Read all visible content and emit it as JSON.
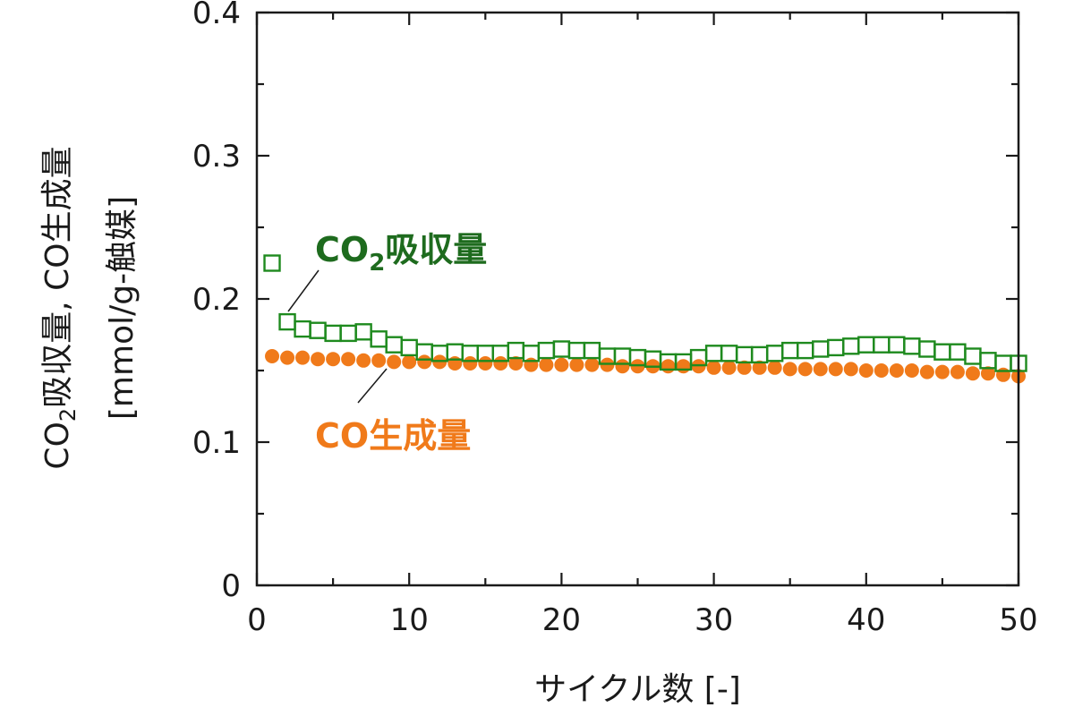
{
  "chart_data": {
    "type": "scatter",
    "title": "",
    "xlabel": "サイクル数 [-]",
    "ylabel": {
      "line1_prefix": "CO",
      "line1_sub": "2",
      "line1_suffix": "吸収量, CO生成量",
      "line2": "[mmol/g-触媒]"
    },
    "xlim": [
      0,
      50
    ],
    "ylim": [
      0,
      0.4
    ],
    "xticks": [
      0,
      10,
      20,
      30,
      40,
      50
    ],
    "xtick_labels": [
      "0",
      "10",
      "20",
      "30",
      "40",
      "50"
    ],
    "yticks": [
      0,
      0.1,
      0.2,
      0.3,
      0.4
    ],
    "ytick_labels": [
      "0",
      "0.1",
      "0.2",
      "0.3",
      "0.4"
    ],
    "x_minor_step": 5,
    "y_minor_step": 0.05,
    "grid": false,
    "legend": "none",
    "series": [
      {
        "key": "co2",
        "marker": "open-square",
        "color": "#1e8a1e",
        "x": [
          1,
          2,
          3,
          4,
          5,
          6,
          7,
          8,
          9,
          10,
          11,
          12,
          13,
          14,
          15,
          16,
          17,
          18,
          19,
          20,
          21,
          22,
          23,
          24,
          25,
          26,
          27,
          28,
          29,
          30,
          31,
          32,
          33,
          34,
          35,
          36,
          37,
          38,
          39,
          40,
          41,
          42,
          43,
          44,
          45,
          46,
          47,
          48,
          49,
          50
        ],
        "y": [
          0.225,
          0.184,
          0.179,
          0.178,
          0.176,
          0.176,
          0.177,
          0.172,
          0.168,
          0.166,
          0.163,
          0.162,
          0.163,
          0.162,
          0.162,
          0.162,
          0.164,
          0.162,
          0.164,
          0.165,
          0.164,
          0.164,
          0.16,
          0.16,
          0.159,
          0.158,
          0.156,
          0.156,
          0.159,
          0.162,
          0.162,
          0.161,
          0.161,
          0.162,
          0.164,
          0.164,
          0.165,
          0.166,
          0.167,
          0.168,
          0.168,
          0.168,
          0.167,
          0.165,
          0.163,
          0.163,
          0.16,
          0.157,
          0.155,
          0.155
        ]
      },
      {
        "key": "co",
        "marker": "filled-circle",
        "color": "#f07a1a",
        "x": [
          1,
          2,
          3,
          4,
          5,
          6,
          7,
          8,
          9,
          10,
          11,
          12,
          13,
          14,
          15,
          16,
          17,
          18,
          19,
          20,
          21,
          22,
          23,
          24,
          25,
          26,
          27,
          28,
          29,
          30,
          31,
          32,
          33,
          34,
          35,
          36,
          37,
          38,
          39,
          40,
          41,
          42,
          43,
          44,
          45,
          46,
          47,
          48,
          49,
          50
        ],
        "y": [
          0.16,
          0.159,
          0.159,
          0.158,
          0.158,
          0.158,
          0.157,
          0.157,
          0.156,
          0.156,
          0.156,
          0.156,
          0.155,
          0.155,
          0.155,
          0.155,
          0.155,
          0.154,
          0.154,
          0.154,
          0.154,
          0.154,
          0.154,
          0.153,
          0.153,
          0.153,
          0.153,
          0.153,
          0.153,
          0.152,
          0.152,
          0.152,
          0.152,
          0.152,
          0.151,
          0.151,
          0.151,
          0.151,
          0.151,
          0.15,
          0.15,
          0.15,
          0.15,
          0.149,
          0.149,
          0.149,
          0.148,
          0.148,
          0.147,
          0.146
        ]
      }
    ],
    "annotations": [
      {
        "key": "co2",
        "prefix": "CO",
        "sub": "2",
        "suffix": "吸収量",
        "color": "#1e6b1e",
        "point_index": 1
      },
      {
        "key": "co",
        "prefix": "CO",
        "sub": "",
        "suffix": "生成量",
        "color": "#f07a1a",
        "point_index": 8
      }
    ]
  }
}
